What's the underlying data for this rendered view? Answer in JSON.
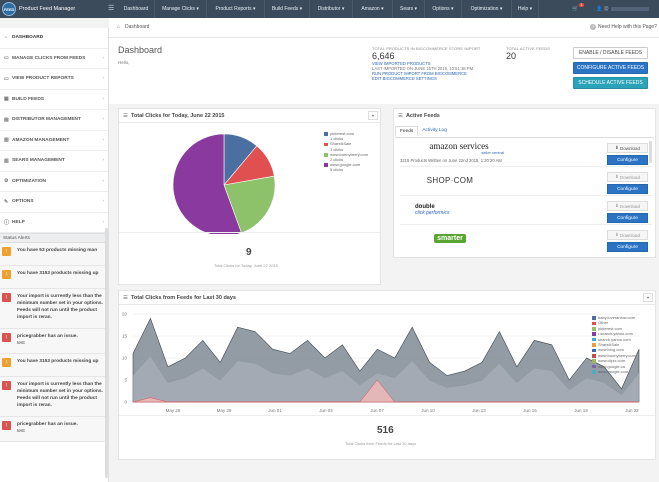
{
  "nav": {
    "app_title": "Product Feed Manager",
    "logo_text": "FEED",
    "menu": [
      "Dashboard",
      "Manage Clicks",
      "Product Reports",
      "Build Feeds",
      "Distributor",
      "Amazon",
      "Sears",
      "Options",
      "Optimization",
      "Help"
    ],
    "notification_count": "1",
    "user_label": "@"
  },
  "sidebar": {
    "items": [
      "DASHBOARD",
      "MANAGE CLICKS FROM FEEDS",
      "VIEW PRODUCT REPORTS",
      "BUILD FEEDS",
      "DISTRIBUTOR MANAGEMENT",
      "AMAZON MANAGEMENT",
      "SEARS MANAGEMENT",
      "OPTIMIZATION",
      "OPTIONS",
      "HELP"
    ],
    "status_title": "Status Alerts",
    "alerts": [
      {
        "type": "warn",
        "text": "You have 53 products missing man"
      },
      {
        "type": "warn",
        "text": "You have 3153 products missing up"
      },
      {
        "type": "err",
        "text": "Your import is currently less than the minimum number set in your options. Feeds will not run until the product import is reran."
      },
      {
        "type": "err",
        "text": "pricegrabber has an issue.",
        "sub": "test"
      },
      {
        "type": "warn",
        "text": "You have 3153 products missing up"
      },
      {
        "type": "err",
        "text": "Your import is currently less than the minimum number set in your options. Feeds will not run until the product import is reran."
      },
      {
        "type": "err",
        "text": "pricegrabber has an issue.",
        "sub": "test"
      }
    ]
  },
  "breadcrumb": "Dashboard",
  "help_text": "Need Help with this Page?",
  "header": {
    "title": "Dashboard",
    "hello": "Hello,",
    "total_products_label": "TOTAL PRODUCTS IN BIGCOMMERCE STORE IMPORT",
    "total_products_value": "6,646",
    "view_imported": "VIEW IMPORTED PRODUCTS",
    "last_imported": "LAST IMPORTED ON JUNE 15TH 2015, 10:51:38 PM",
    "run_import": "RUN PRODUCT IMPORT FROM BIGCOMMERCE",
    "edit_settings": "EDIT BIGCOMMERCE SETTINGS",
    "active_feeds_label": "TOTAL ACTIVE FEEDS",
    "active_feeds_value": "20",
    "btn_enable": "ENABLE / DISABLE FEEDS",
    "btn_configure": "CONFIGURE ACTIVE FEEDS",
    "btn_schedule": "SCHEDULE ACTIVE FEEDS"
  },
  "clicks_today": {
    "title": "Total Clicks for Today, June 22 2015",
    "total": "9",
    "total_label": "Total Clicks for Today, June 22 2015"
  },
  "active_feeds": {
    "title": "Active Feeds",
    "tabs": [
      "Feeds",
      "Activity Log"
    ],
    "amazon_name": "amazon services",
    "amazon_sub": "seller central",
    "amazon_note": "3215 Products Written on June 22nd 2015, 1:20:20 AM",
    "shopcom": "SHOP·COM",
    "dc_top": "double",
    "dc_bottom": "click performics",
    "smarter": "smarter",
    "download": "Download",
    "configure": "Configure"
  },
  "last30": {
    "title": "Total Clicks from Feeds for Last 30 days",
    "total": "516",
    "total_label": "Total Clicks from Feeds for Last 30 days"
  },
  "colors": {
    "nav": "#3b4b5c",
    "blue": "#2b73c4",
    "teal": "#2aa2b8"
  },
  "chart_data": [
    {
      "type": "pie",
      "title": "Total Clicks for Today, June 22 2015",
      "legend": [
        {
          "name": "pinterest.com",
          "sub": "1 clicks",
          "value": 1,
          "color": "#4a6fa0"
        },
        {
          "name": "ShareASale",
          "sub": "1 clicks",
          "value": 1,
          "color": "#e05050"
        },
        {
          "name": "www.bunnyberry.com",
          "sub": "2 clicks",
          "value": 2,
          "color": "#8dc26a"
        },
        {
          "name": "www.google.com",
          "sub": "5 clicks",
          "value": 5,
          "color": "#8a3a9e"
        }
      ]
    },
    {
      "type": "area",
      "title": "Total Clicks from Feeds for Last 30 days",
      "ylim": [
        0,
        20
      ],
      "yticks": [
        0,
        5,
        10,
        15,
        20
      ],
      "xticks": [
        "May 26",
        "May 29",
        "Jun 01",
        "Jun 04",
        "Jun 07",
        "Jun 10",
        "Jun 13",
        "Jun 16",
        "Jun 19",
        "Jun 22"
      ],
      "legend": [
        {
          "name": "baby.loveranlow.com",
          "color": "#4a6fa0"
        },
        {
          "name": "Other",
          "color": "#e05050"
        },
        {
          "name": "pinterest.com",
          "color": "#8dc26a"
        },
        {
          "name": "r.search.yahoo.com",
          "color": "#8a3a9e"
        },
        {
          "name": "search.yahoo.com",
          "color": "#3aaed8"
        },
        {
          "name": "ShareASale",
          "color": "#f09a3a"
        },
        {
          "name": "www.bing.com",
          "color": "#3a6aa8"
        },
        {
          "name": "www.bunnyberry.com",
          "color": "#c0504d"
        },
        {
          "name": "www.clipix.com",
          "color": "#9bbb59"
        },
        {
          "name": "www.google.ca",
          "color": "#8064a2"
        },
        {
          "name": "www.google.com",
          "color": "#4bacc6"
        }
      ],
      "series": [
        {
          "name": "www.google.com",
          "values": [
            11,
            19,
            8,
            10,
            14,
            9,
            17,
            16,
            12,
            11,
            14,
            10,
            13,
            7,
            12,
            10,
            17,
            9,
            6,
            7,
            9,
            16,
            8,
            14,
            13,
            5,
            10,
            8,
            3,
            12
          ]
        },
        {
          "name": "Other",
          "values": [
            0,
            1,
            0,
            0,
            0,
            0,
            0,
            0,
            0,
            0,
            0,
            0,
            0,
            0,
            5,
            0,
            0,
            0,
            0,
            0,
            0,
            0,
            0,
            0,
            0,
            0,
            0,
            0,
            0,
            0
          ]
        }
      ]
    }
  ]
}
